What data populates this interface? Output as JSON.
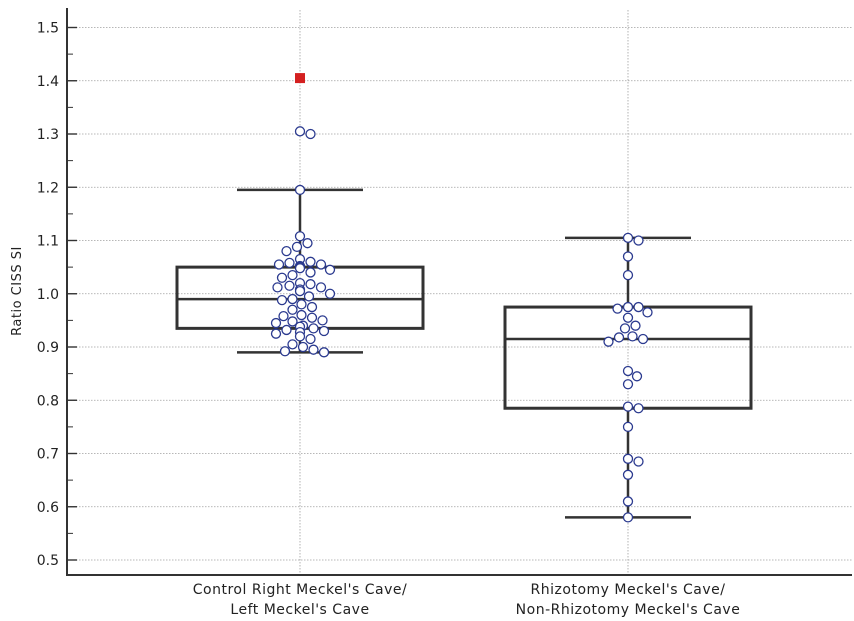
{
  "chart_data": {
    "type": "box",
    "title": "",
    "ylabel": "Ratio CISS SI",
    "xlabel": "",
    "ylim": [
      0.47,
      1.535
    ],
    "yticks": [
      0.5,
      0.6,
      0.7,
      0.8,
      0.9,
      1.0,
      1.1,
      1.2,
      1.3,
      1.4,
      1.5
    ],
    "yminor_step": 0.05,
    "grid": true,
    "categories": [
      [
        "Control Right Meckel's Cave/",
        "Left Meckel's Cave"
      ],
      [
        "Rhizotomy Meckel's Cave/",
        "Non-Rhizotomy Meckel's Cave"
      ]
    ],
    "boxes": [
      {
        "whisker_low": 0.89,
        "q1": 0.935,
        "median": 0.99,
        "q3": 1.05,
        "whisker_high": 1.195,
        "outliers": [
          1.405
        ],
        "points": [
          1.305,
          1.3,
          1.195,
          1.108,
          1.095,
          1.088,
          1.08,
          1.065,
          1.06,
          1.058,
          1.055,
          1.055,
          1.052,
          1.05,
          1.05,
          1.048,
          1.045,
          1.04,
          1.035,
          1.03,
          1.02,
          1.018,
          1.015,
          1.012,
          1.012,
          1.008,
          1.005,
          1.0,
          0.995,
          0.99,
          0.988,
          0.98,
          0.975,
          0.97,
          0.96,
          0.958,
          0.955,
          0.95,
          0.948,
          0.945,
          0.94,
          0.938,
          0.935,
          0.932,
          0.93,
          0.928,
          0.925,
          0.92,
          0.915,
          0.905,
          0.9,
          0.895,
          0.892,
          0.89
        ]
      },
      {
        "whisker_low": 0.58,
        "q1": 0.785,
        "median": 0.915,
        "q3": 0.975,
        "whisker_high": 1.105,
        "outliers": [],
        "points": [
          1.105,
          1.1,
          1.07,
          1.035,
          0.975,
          0.975,
          0.972,
          0.965,
          0.955,
          0.94,
          0.935,
          0.92,
          0.918,
          0.915,
          0.91,
          0.855,
          0.845,
          0.83,
          0.788,
          0.785,
          0.75,
          0.69,
          0.685,
          0.66,
          0.61,
          0.58
        ]
      }
    ],
    "colors": {
      "box": "#333333",
      "point_fill": "#ffffff",
      "point_stroke": "#2b3a8f",
      "outlier": "#d42020",
      "grid": "#a0a0a0",
      "axis": "#333333"
    }
  }
}
